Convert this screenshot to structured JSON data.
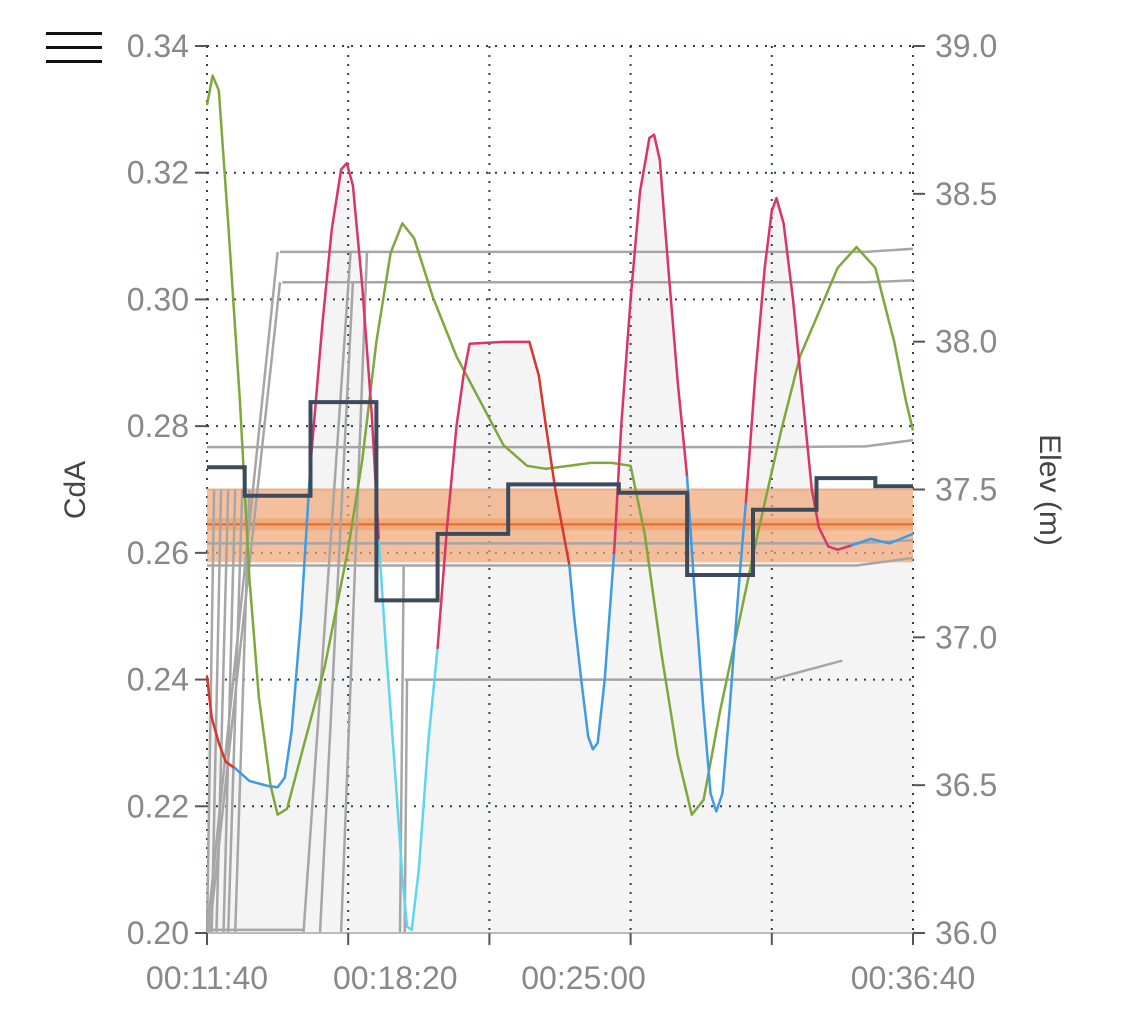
{
  "menu": {
    "icon": "hamburger-icon"
  },
  "chart_data": {
    "type": "line",
    "x_start_seconds": 700,
    "x_end_seconds": 2200,
    "xticks": [
      "00:11:40",
      "00:18:20",
      "00:25:00",
      "00:36:40"
    ],
    "ylabel": "CdA",
    "ylim": [
      0.2,
      0.34
    ],
    "yticks": [
      "0.20",
      "0.22",
      "0.24",
      "0.26",
      "0.28",
      "0.30",
      "0.32",
      "0.34"
    ],
    "ylabel_right": "Elev (m)",
    "ylim_right": [
      36.0,
      39.0
    ],
    "yticks_right": [
      "36.0",
      "36.5",
      "37.0",
      "37.5",
      "38.0",
      "38.5",
      "39.0"
    ],
    "grid": true,
    "band": {
      "low": 0.2585,
      "high": 0.27,
      "center": 0.2645,
      "color": "#f0a574"
    },
    "colors": {
      "cda_step": "#3d4a5c",
      "elevation": "#7ea83a",
      "velocity_fast": "#d93565",
      "velocity_slow": "#3f9be2",
      "velocity_min": "#5fd6ef",
      "velocity_red": "#d9362e",
      "gray": "#a6a6a6",
      "band_line": "#e86a2a"
    },
    "series": [
      {
        "role": "step",
        "points": [
          [
            700,
            0.2735
          ],
          [
            780,
            0.2735
          ],
          [
            780,
            0.269
          ],
          [
            920,
            0.269
          ],
          [
            920,
            0.2838
          ],
          [
            1060,
            0.2838
          ],
          [
            1060,
            0.2525
          ],
          [
            1190,
            0.2525
          ],
          [
            1190,
            0.263
          ],
          [
            1340,
            0.263
          ],
          [
            1340,
            0.2708
          ],
          [
            1575,
            0.2708
          ],
          [
            1575,
            0.2695
          ],
          [
            1720,
            0.2695
          ],
          [
            1720,
            0.2565
          ],
          [
            1860,
            0.2565
          ],
          [
            1860,
            0.2668
          ],
          [
            1995,
            0.2668
          ],
          [
            1995,
            0.2718
          ],
          [
            2120,
            0.2718
          ],
          [
            2120,
            0.2705
          ],
          [
            2200,
            0.2705
          ]
        ]
      },
      {
        "role": "elevation",
        "points": [
          [
            700,
            38.8
          ],
          [
            712,
            38.9
          ],
          [
            725,
            38.85
          ],
          [
            745,
            38.4
          ],
          [
            770,
            37.8
          ],
          [
            790,
            37.2
          ],
          [
            810,
            36.8
          ],
          [
            835,
            36.5
          ],
          [
            850,
            36.4
          ],
          [
            870,
            36.42
          ],
          [
            900,
            36.6
          ],
          [
            950,
            36.9
          ],
          [
            1000,
            37.3
          ],
          [
            1030,
            37.6
          ],
          [
            1060,
            38.0
          ],
          [
            1090,
            38.3
          ],
          [
            1115,
            38.4
          ],
          [
            1140,
            38.35
          ],
          [
            1180,
            38.15
          ],
          [
            1230,
            37.95
          ],
          [
            1280,
            37.8
          ],
          [
            1330,
            37.65
          ],
          [
            1380,
            37.58
          ],
          [
            1420,
            37.57
          ],
          [
            1470,
            37.58
          ],
          [
            1515,
            37.59
          ],
          [
            1560,
            37.59
          ],
          [
            1600,
            37.58
          ],
          [
            1630,
            37.35
          ],
          [
            1665,
            36.95
          ],
          [
            1700,
            36.6
          ],
          [
            1730,
            36.4
          ],
          [
            1755,
            36.45
          ],
          [
            1790,
            36.75
          ],
          [
            1830,
            37.05
          ],
          [
            1870,
            37.35
          ],
          [
            1920,
            37.7
          ],
          [
            1960,
            37.95
          ],
          [
            2000,
            38.1
          ],
          [
            2040,
            38.25
          ],
          [
            2080,
            38.32
          ],
          [
            2120,
            38.25
          ],
          [
            2160,
            38.0
          ],
          [
            2185,
            37.8
          ],
          [
            2200,
            37.7
          ]
        ]
      },
      {
        "role": "velocity",
        "segments": [
          {
            "color": "velocity_red",
            "points": [
              [
                700,
                0.2405
              ],
              [
                710,
                0.234
              ],
              [
                725,
                0.23
              ],
              [
                740,
                0.227
              ],
              [
                760,
                0.226
              ]
            ]
          },
          {
            "color": "velocity_slow",
            "points": [
              [
                760,
                0.226
              ],
              [
                790,
                0.224
              ],
              [
                830,
                0.2232
              ],
              [
                850,
                0.223
              ],
              [
                865,
                0.2245
              ],
              [
                880,
                0.232
              ],
              [
                900,
                0.25
              ],
              [
                920,
                0.274
              ]
            ]
          },
          {
            "color": "velocity_fast",
            "points": [
              [
                920,
                0.274
              ],
              [
                945,
                0.296
              ],
              [
                965,
                0.311
              ],
              [
                985,
                0.3205
              ],
              [
                997,
                0.3215
              ],
              [
                1010,
                0.318
              ],
              [
                1030,
                0.302
              ],
              [
                1050,
                0.282
              ],
              [
                1065,
                0.262
              ]
            ]
          },
          {
            "color": "velocity_min",
            "points": [
              [
                1065,
                0.262
              ],
              [
                1080,
                0.245
              ],
              [
                1100,
                0.225
              ],
              [
                1115,
                0.209
              ],
              [
                1125,
                0.201
              ],
              [
                1135,
                0.2005
              ],
              [
                1150,
                0.21
              ],
              [
                1170,
                0.23
              ],
              [
                1190,
                0.245
              ]
            ]
          },
          {
            "color": "velocity_fast",
            "points": [
              [
                1190,
                0.245
              ],
              [
                1210,
                0.264
              ],
              [
                1230,
                0.28
              ],
              [
                1245,
                0.288
              ],
              [
                1258,
                0.293
              ],
              [
                1330,
                0.2933
              ],
              [
                1385,
                0.2933
              ]
            ]
          },
          {
            "color": "velocity_red",
            "points": [
              [
                1385,
                0.2933
              ],
              [
                1405,
                0.288
              ],
              [
                1420,
                0.28
              ],
              [
                1440,
                0.27
              ],
              [
                1460,
                0.262
              ],
              [
                1470,
                0.258
              ]
            ]
          },
          {
            "color": "velocity_slow",
            "points": [
              [
                1470,
                0.258
              ],
              [
                1480,
                0.25
              ],
              [
                1495,
                0.24
              ],
              [
                1510,
                0.231
              ],
              [
                1520,
                0.229
              ],
              [
                1530,
                0.23
              ],
              [
                1545,
                0.24
              ],
              [
                1565,
                0.26
              ]
            ]
          },
          {
            "color": "velocity_fast",
            "points": [
              [
                1565,
                0.26
              ],
              [
                1580,
                0.28
              ],
              [
                1600,
                0.3
              ],
              [
                1620,
                0.317
              ],
              [
                1640,
                0.3255
              ],
              [
                1650,
                0.326
              ],
              [
                1662,
                0.322
              ],
              [
                1680,
                0.305
              ],
              [
                1700,
                0.287
              ],
              [
                1720,
                0.272
              ]
            ]
          },
          {
            "color": "velocity_slow",
            "points": [
              [
                1720,
                0.272
              ],
              [
                1735,
                0.255
              ],
              [
                1755,
                0.235
              ],
              [
                1770,
                0.222
              ],
              [
                1782,
                0.2192
              ],
              [
                1795,
                0.222
              ],
              [
                1810,
                0.235
              ],
              [
                1830,
                0.255
              ],
              [
                1845,
                0.268
              ]
            ]
          },
          {
            "color": "velocity_fast",
            "points": [
              [
                1845,
                0.268
              ],
              [
                1865,
                0.288
              ],
              [
                1885,
                0.305
              ],
              [
                1900,
                0.314
              ],
              [
                1910,
                0.316
              ],
              [
                1925,
                0.312
              ],
              [
                1945,
                0.3
              ],
              [
                1965,
                0.285
              ],
              [
                1985,
                0.27
              ],
              [
                2000,
                0.264
              ]
            ]
          },
          {
            "color": "velocity_fast",
            "points": [
              [
                2000,
                0.264
              ],
              [
                2020,
                0.261
              ],
              [
                2040,
                0.2605
              ],
              [
                2070,
                0.2612
              ]
            ]
          },
          {
            "color": "velocity_slow",
            "points": [
              [
                2070,
                0.2612
              ],
              [
                2110,
                0.2622
              ],
              [
                2150,
                0.2615
              ],
              [
                2200,
                0.263
              ]
            ]
          }
        ]
      },
      {
        "role": "gray_horizontal",
        "lines": [
          [
            [
              855,
              0.3075
            ],
            [
              1900,
              0.3075
            ],
            [
              2100,
              0.3075
            ],
            [
              2200,
              0.308
            ]
          ],
          [
            [
              860,
              0.3027
            ],
            [
              1900,
              0.3027
            ],
            [
              2100,
              0.3027
            ],
            [
              2200,
              0.303
            ]
          ],
          [
            [
              700,
              0.2767
            ],
            [
              1900,
              0.2767
            ],
            [
              2100,
              0.2768
            ],
            [
              2200,
              0.2778
            ]
          ],
          [
            [
              700,
              0.2615
            ],
            [
              1940,
              0.2615
            ],
            [
              2070,
              0.2615
            ],
            [
              2200,
              0.262
            ]
          ],
          [
            [
              700,
              0.258
            ],
            [
              1940,
              0.258
            ],
            [
              2080,
              0.258
            ],
            [
              2200,
              0.2592
            ]
          ],
          [
            [
              1120,
              0.24
            ],
            [
              1850,
              0.24
            ],
            [
              1900,
              0.24
            ],
            [
              2050,
              0.243
            ]
          ]
        ]
      },
      {
        "role": "gray_diagonal",
        "lines": [
          [
            [
              700,
              0.2
            ],
            [
              715,
              0.27
            ]
          ],
          [
            [
              710,
              0.2
            ],
            [
              730,
              0.27
            ]
          ],
          [
            [
              720,
              0.2
            ],
            [
              745,
              0.27
            ]
          ],
          [
            [
              735,
              0.2
            ],
            [
              760,
              0.27
            ]
          ],
          [
            [
              745,
              0.2
            ],
            [
              775,
              0.27
            ]
          ],
          [
            [
              760,
              0.2
            ],
            [
              790,
              0.27
            ]
          ],
          [
            [
              700,
              0.2
            ],
            [
              850,
              0.3075
            ]
          ],
          [
            [
              705,
              0.2
            ],
            [
              855,
              0.3027
            ]
          ],
          [
            [
              905,
              0.2
            ],
            [
              1005,
              0.3075
            ]
          ],
          [
            [
              940,
              0.2
            ],
            [
              1010,
              0.3027
            ]
          ],
          [
            [
              985,
              0.2
            ],
            [
              1040,
              0.3075
            ]
          ],
          [
            [
              1110,
              0.2
            ],
            [
              1118,
              0.258
            ]
          ],
          [
            [
              1120,
              0.2
            ],
            [
              1125,
              0.24
            ]
          ]
        ]
      }
    ]
  }
}
